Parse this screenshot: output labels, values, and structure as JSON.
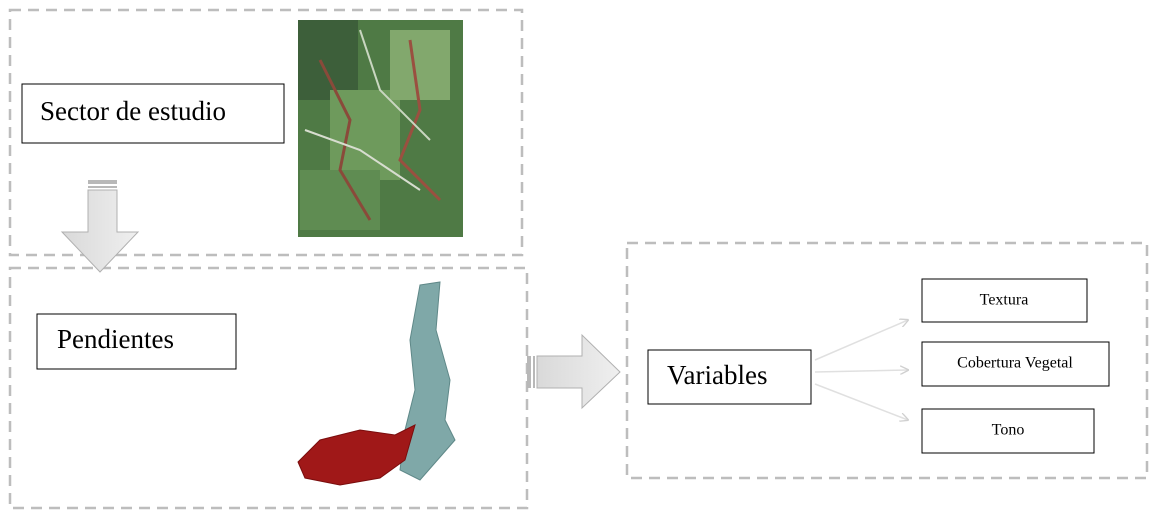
{
  "nodes": [
    {
      "label": "Sector de estudio"
    },
    {
      "label": "Pendientes"
    },
    {
      "label": "Variables"
    },
    {
      "label": "Textura"
    },
    {
      "label": "Cobertura Vegetal"
    },
    {
      "label": "Tono"
    }
  ]
}
